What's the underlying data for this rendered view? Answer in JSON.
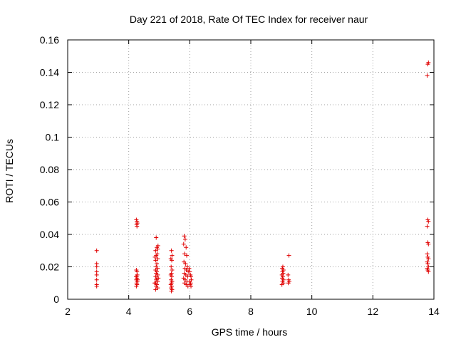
{
  "chart_data": {
    "type": "scatter",
    "title": "Day 221 of 2018, Rate Of TEC Index for receiver naur",
    "xlabel": "GPS time / hours",
    "ylabel": "ROTI / TECUs",
    "xlim": [
      2,
      14
    ],
    "ylim": [
      0,
      0.16
    ],
    "xticks": [
      2,
      4,
      6,
      8,
      10,
      12,
      14
    ],
    "yticks": [
      0,
      0.02,
      0.04,
      0.06,
      0.08,
      0.1,
      0.12,
      0.14,
      0.16
    ],
    "xtick_labels": [
      "2",
      "4",
      "6",
      "8",
      "10",
      "12",
      "14"
    ],
    "ytick_labels": [
      "0",
      "0.02",
      "0.04",
      "0.06",
      "0.08",
      "0.1",
      "0.12",
      "0.14",
      "0.16"
    ],
    "grid": true,
    "marker": "+",
    "marker_color": "#e00000",
    "series": [
      {
        "name": "ROTI",
        "points": [
          [
            2.95,
            0.03
          ],
          [
            2.95,
            0.022
          ],
          [
            2.95,
            0.02
          ],
          [
            2.95,
            0.017
          ],
          [
            2.95,
            0.015
          ],
          [
            2.95,
            0.012
          ],
          [
            2.95,
            0.009
          ],
          [
            2.95,
            0.008
          ],
          [
            4.25,
            0.049
          ],
          [
            4.27,
            0.048
          ],
          [
            4.28,
            0.047
          ],
          [
            4.26,
            0.046
          ],
          [
            4.27,
            0.045
          ],
          [
            4.25,
            0.018
          ],
          [
            4.27,
            0.017
          ],
          [
            4.28,
            0.015
          ],
          [
            4.26,
            0.014
          ],
          [
            4.27,
            0.013
          ],
          [
            4.25,
            0.012
          ],
          [
            4.28,
            0.011
          ],
          [
            4.26,
            0.01
          ],
          [
            4.27,
            0.009
          ],
          [
            4.25,
            0.008
          ],
          [
            4.29,
            0.012
          ],
          [
            4.24,
            0.014
          ],
          [
            4.9,
            0.038
          ],
          [
            4.92,
            0.032
          ],
          [
            4.95,
            0.031
          ],
          [
            4.88,
            0.03
          ],
          [
            4.93,
            0.028
          ],
          [
            4.9,
            0.027
          ],
          [
            4.95,
            0.025
          ],
          [
            4.88,
            0.024
          ],
          [
            4.92,
            0.022
          ],
          [
            4.9,
            0.02
          ],
          [
            4.95,
            0.019
          ],
          [
            4.88,
            0.018
          ],
          [
            4.92,
            0.017
          ],
          [
            4.9,
            0.016
          ],
          [
            4.95,
            0.015
          ],
          [
            4.88,
            0.014
          ],
          [
            4.92,
            0.013
          ],
          [
            4.9,
            0.012
          ],
          [
            4.95,
            0.011
          ],
          [
            4.88,
            0.01
          ],
          [
            4.92,
            0.009
          ],
          [
            4.9,
            0.008
          ],
          [
            4.95,
            0.007
          ],
          [
            4.88,
            0.006
          ],
          [
            4.96,
            0.033
          ],
          [
            4.86,
            0.026
          ],
          [
            4.97,
            0.013
          ],
          [
            4.85,
            0.01
          ],
          [
            5.4,
            0.03
          ],
          [
            5.42,
            0.027
          ],
          [
            5.38,
            0.025
          ],
          [
            5.41,
            0.024
          ],
          [
            5.39,
            0.02
          ],
          [
            5.42,
            0.018
          ],
          [
            5.4,
            0.016
          ],
          [
            5.38,
            0.015
          ],
          [
            5.41,
            0.014
          ],
          [
            5.39,
            0.012
          ],
          [
            5.42,
            0.011
          ],
          [
            5.4,
            0.01
          ],
          [
            5.38,
            0.009
          ],
          [
            5.41,
            0.008
          ],
          [
            5.39,
            0.007
          ],
          [
            5.42,
            0.006
          ],
          [
            5.4,
            0.005
          ],
          [
            5.82,
            0.039
          ],
          [
            5.85,
            0.037
          ],
          [
            5.8,
            0.034
          ],
          [
            5.88,
            0.032
          ],
          [
            5.83,
            0.028
          ],
          [
            5.9,
            0.027
          ],
          [
            5.81,
            0.023
          ],
          [
            5.86,
            0.022
          ],
          [
            5.92,
            0.02
          ],
          [
            5.84,
            0.019
          ],
          [
            5.89,
            0.018
          ],
          [
            5.95,
            0.017
          ],
          [
            5.82,
            0.016
          ],
          [
            5.87,
            0.015
          ],
          [
            5.93,
            0.014
          ],
          [
            5.8,
            0.013
          ],
          [
            5.85,
            0.012
          ],
          [
            5.91,
            0.011
          ],
          [
            5.83,
            0.01
          ],
          [
            5.88,
            0.009
          ],
          [
            5.94,
            0.008
          ],
          [
            5.98,
            0.019
          ],
          [
            6.0,
            0.017
          ],
          [
            6.02,
            0.015
          ],
          [
            6.04,
            0.014
          ],
          [
            6.05,
            0.012
          ],
          [
            5.99,
            0.011
          ],
          [
            6.03,
            0.01
          ],
          [
            6.01,
            0.009
          ],
          [
            6.04,
            0.008
          ],
          [
            9.05,
            0.02
          ],
          [
            9.03,
            0.019
          ],
          [
            9.07,
            0.018
          ],
          [
            9.04,
            0.017
          ],
          [
            9.06,
            0.016
          ],
          [
            9.02,
            0.015
          ],
          [
            9.05,
            0.014
          ],
          [
            9.03,
            0.013
          ],
          [
            9.07,
            0.012
          ],
          [
            9.04,
            0.011
          ],
          [
            9.06,
            0.01
          ],
          [
            9.02,
            0.009
          ],
          [
            9.25,
            0.027
          ],
          [
            9.22,
            0.015
          ],
          [
            9.24,
            0.012
          ],
          [
            9.26,
            0.011
          ],
          [
            9.23,
            0.01
          ],
          [
            13.82,
            0.146
          ],
          [
            13.8,
            0.145
          ],
          [
            13.78,
            0.138
          ],
          [
            13.8,
            0.049
          ],
          [
            13.82,
            0.048
          ],
          [
            13.78,
            0.045
          ],
          [
            13.8,
            0.035
          ],
          [
            13.82,
            0.034
          ],
          [
            13.78,
            0.028
          ],
          [
            13.8,
            0.026
          ],
          [
            13.82,
            0.025
          ],
          [
            13.78,
            0.023
          ],
          [
            13.8,
            0.022
          ],
          [
            13.82,
            0.02
          ],
          [
            13.78,
            0.019
          ],
          [
            13.8,
            0.018
          ],
          [
            13.82,
            0.017
          ]
        ]
      }
    ]
  }
}
